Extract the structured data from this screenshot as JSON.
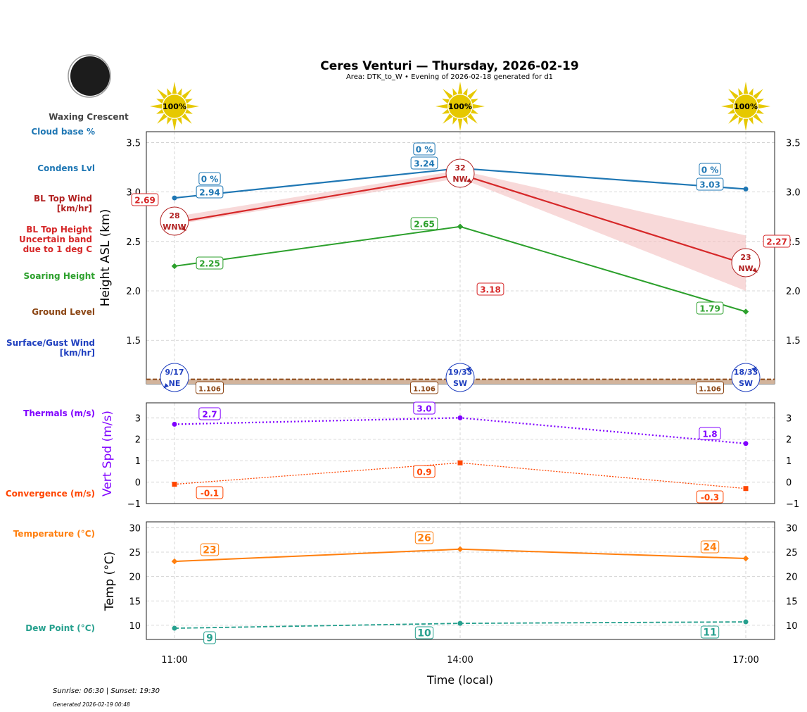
{
  "header": {
    "title": "Ceres Venturi — Thursday, 2026-02-19",
    "subtitle": "Area: DTK_to_W • Evening of 2026-02-18 generated for d1",
    "moon_phase": "Waxing Crescent"
  },
  "footer": {
    "sun_times": "Sunrise: 06:30 | Sunset: 19:30",
    "generated": "Generated 2026-02-19 00:48"
  },
  "colors": {
    "cloud": "#1f77b4",
    "bl_top": "#d62728",
    "bl_wind": "#b22222",
    "soaring": "#2ca02c",
    "ground": "#8b4513",
    "surface_wind": "#1f3fbf",
    "thermals": "#8000ff",
    "convergence": "#ff4500",
    "temperature": "#ff7f0e",
    "dew_point": "#26a08e",
    "sun": "#e6c800"
  },
  "chart_data": [
    {
      "type": "line",
      "ylabel": "Height ASL (km)",
      "ylim": [
        1.06,
        3.61
      ],
      "yticks": [
        "1.5",
        "2.0",
        "2.5",
        "3.0",
        "3.5"
      ],
      "x": [
        "11:00",
        "14:00",
        "17:00"
      ],
      "sun_percent": [
        "100%",
        "100%",
        "100%"
      ],
      "legend": {
        "cloud_base": "Cloud base %",
        "condens": "Condens Lvl",
        "bl_wind": "BL Top Wind\n[km/hr]",
        "bl_top": "BL Top Height\nUncertain band\ndue to 1 deg C",
        "soaring": "Soaring Height",
        "ground": "Ground Level",
        "surface_wind": "Surface/Gust Wind\n[km/hr]"
      },
      "cloud_base_pct": [
        "0 %",
        "0 %",
        "0 %"
      ],
      "condens_level": [
        2.94,
        3.24,
        3.03
      ],
      "bl_top": [
        2.69,
        3.18,
        2.27
      ],
      "bl_top_band": [
        [
          2.67,
          2.75
        ],
        [
          3.14,
          3.22
        ],
        [
          2.0,
          2.56
        ]
      ],
      "bl_wind": [
        {
          "speed": "28",
          "dir": "WNW"
        },
        {
          "speed": "32",
          "dir": "NW"
        },
        {
          "speed": "23",
          "dir": "NW"
        }
      ],
      "soaring_height": [
        2.25,
        2.65,
        1.79
      ],
      "ground_level": [
        1.106,
        1.106,
        1.106
      ],
      "surface_wind": [
        {
          "speed": "9/17",
          "dir": "NE"
        },
        {
          "speed": "19/33",
          "dir": "SW"
        },
        {
          "speed": "18/33",
          "dir": "SW"
        }
      ]
    },
    {
      "type": "line",
      "ylabel": "Vert Spd (m/s)",
      "ylim": [
        -1,
        3.7
      ],
      "yticks": [
        "−1",
        "0",
        "1",
        "2",
        "3"
      ],
      "series": [
        {
          "name": "Thermals (m/s)",
          "values": [
            2.7,
            3.0,
            1.8
          ]
        },
        {
          "name": "Convergence (m/s)",
          "values": [
            -0.1,
            0.9,
            -0.3
          ]
        }
      ]
    },
    {
      "type": "line",
      "ylabel": "Temp (°C)",
      "xlabel": "Time (local)",
      "ylim": [
        7.1,
        31.2
      ],
      "yticks": [
        "10",
        "15",
        "20",
        "25",
        "30"
      ],
      "series": [
        {
          "name": "Temperature (°C)",
          "values": [
            23,
            26,
            24
          ],
          "plotted": [
            23.1,
            25.6,
            23.7
          ]
        },
        {
          "name": "Dew Point (°C)",
          "values": [
            9,
            10,
            11
          ],
          "plotted": [
            9.4,
            10.4,
            10.7
          ]
        }
      ]
    }
  ]
}
